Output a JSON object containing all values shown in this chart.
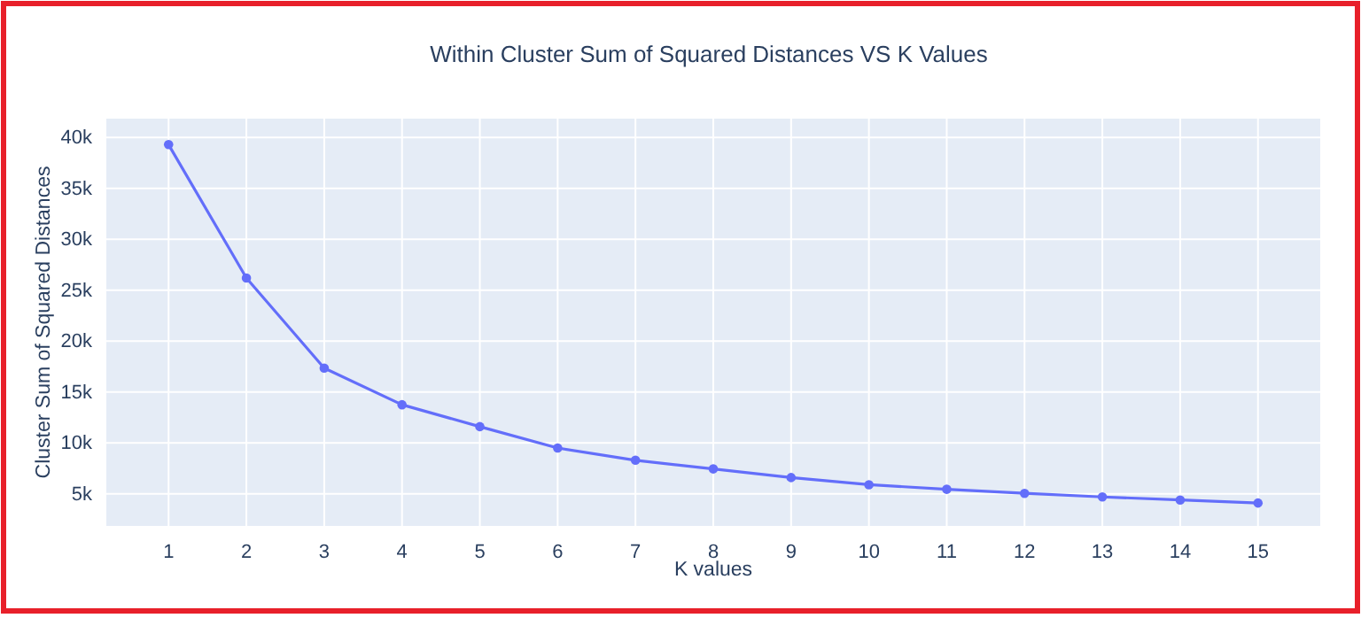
{
  "chart_data": {
    "type": "line",
    "title": "Within Cluster Sum of Squared Distances VS K Values",
    "xlabel": "K values",
    "ylabel": "Cluster Sum of Squared Distances",
    "x": [
      1,
      2,
      3,
      4,
      5,
      6,
      7,
      8,
      9,
      10,
      11,
      12,
      13,
      14,
      15
    ],
    "series": [
      {
        "color": "#636efa",
        "values": [
          39300,
          26200,
          17350,
          13750,
          11600,
          9500,
          8300,
          7450,
          6600,
          5900,
          5450,
          5050,
          4700,
          4400,
          4100
        ]
      }
    ],
    "xlim": [
      0.2,
      15.8
    ],
    "xticks": [
      1,
      2,
      3,
      4,
      5,
      6,
      7,
      8,
      9,
      10,
      11,
      12,
      13,
      14,
      15
    ],
    "ylim": [
      1850,
      41850
    ],
    "yticks": [
      {
        "value": 5000,
        "label": "5k"
      },
      {
        "value": 10000,
        "label": "10k"
      },
      {
        "value": 15000,
        "label": "15k"
      },
      {
        "value": 20000,
        "label": "20k"
      },
      {
        "value": 25000,
        "label": "25k"
      },
      {
        "value": 30000,
        "label": "30k"
      },
      {
        "value": 35000,
        "label": "35k"
      },
      {
        "value": 40000,
        "label": "40k"
      }
    ],
    "grid": true,
    "marker": "circle",
    "line_style": "solid"
  }
}
